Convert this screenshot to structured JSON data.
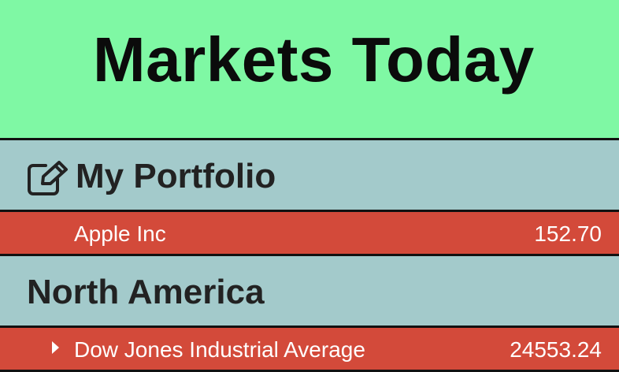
{
  "header": {
    "title": "Markets Today"
  },
  "portfolio": {
    "title": "My Portfolio",
    "icon": "edit-icon",
    "items": [
      {
        "name": "Apple Inc",
        "value": "152.70"
      }
    ]
  },
  "north_america": {
    "title": "North America",
    "items": [
      {
        "name": "Dow Jones Industrial Average",
        "value": "24553.24",
        "icon": "caret-right-icon"
      }
    ]
  },
  "colors": {
    "header_bg": "#7ff8a4",
    "section_bg": "#a3cacb",
    "row_bg": "#d34a3a"
  }
}
